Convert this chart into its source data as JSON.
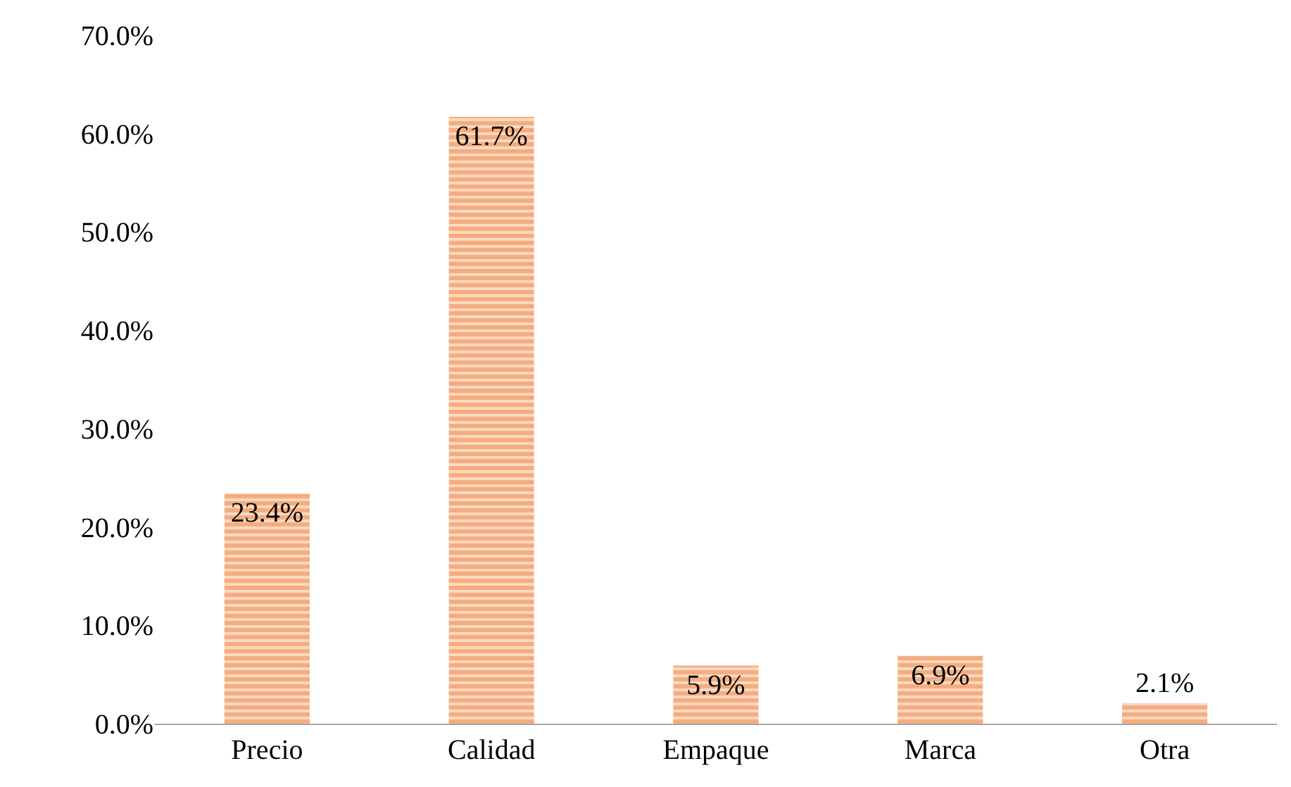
{
  "chart_data": {
    "type": "bar",
    "categories": [
      "Precio",
      "Calidad",
      "Empaque",
      "Marca",
      "Otra"
    ],
    "values": [
      23.4,
      61.7,
      5.9,
      6.9,
      2.1
    ],
    "value_labels": [
      "23.4%",
      "61.7%",
      "5.9%",
      "6.9%",
      "2.1%"
    ],
    "color": "#f0823c",
    "ylim": [
      0,
      70
    ],
    "yticks": [
      {
        "value": 0,
        "label": "0.0%"
      },
      {
        "value": 10,
        "label": "10.0%"
      },
      {
        "value": 20,
        "label": "20.0%"
      },
      {
        "value": 30,
        "label": "30.0%"
      },
      {
        "value": 40,
        "label": "40.0%"
      },
      {
        "value": 50,
        "label": "50.0%"
      },
      {
        "value": 60,
        "label": "60.0%"
      },
      {
        "value": 70,
        "label": "70.0%"
      }
    ],
    "grid": false
  }
}
